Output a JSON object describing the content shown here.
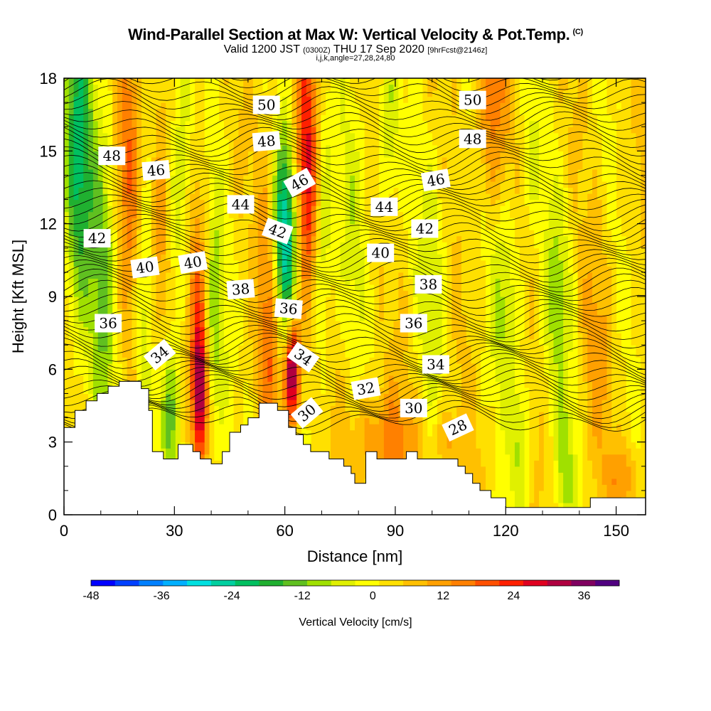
{
  "title": {
    "main": "Wind-Parallel Section at Max W: Vertical Velocity & Pot.Temp.",
    "copyright": "(C)",
    "valid_pre": "Valid 1200 JST",
    "valid_utc": "(0300Z)",
    "valid_date": "THU 17 Sep 2020",
    "forecast": "[9hrFcst@2146z]",
    "indices": "i,j,k,angle=27,28,24,80"
  },
  "chart_data": {
    "type": "heatmap",
    "xlabel": "Distance [nm]",
    "ylabel": "Height [Kft MSL]",
    "xlim": [
      0,
      158
    ],
    "ylim": [
      0,
      18
    ],
    "x_ticks": [
      0,
      30,
      60,
      90,
      120,
      150
    ],
    "y_ticks": [
      0,
      3,
      6,
      9,
      12,
      15,
      18
    ],
    "colorbar": {
      "label": "Vertical Velocity [cm/s]",
      "range": [
        -48,
        42
      ],
      "step": 4,
      "tick_values": [
        -48,
        -36,
        -24,
        -12,
        0,
        12,
        24,
        36
      ],
      "colors": [
        "#0000ff",
        "#0040ff",
        "#0080ff",
        "#00b0ff",
        "#00e0e0",
        "#00d0a0",
        "#00c060",
        "#20b030",
        "#60c020",
        "#a0e000",
        "#e0f000",
        "#ffff00",
        "#ffe000",
        "#ffc000",
        "#ffa000",
        "#ff8000",
        "#ff5000",
        "#ff2000",
        "#e00020",
        "#b00040",
        "#800060",
        "#500080"
      ]
    },
    "terrain_profile": [
      [
        0,
        3.6
      ],
      [
        3,
        3.6
      ],
      [
        3,
        4.3
      ],
      [
        6,
        4.3
      ],
      [
        6,
        4.7
      ],
      [
        9,
        4.7
      ],
      [
        9,
        5.0
      ],
      [
        12,
        5.0
      ],
      [
        12,
        5.3
      ],
      [
        15,
        5.3
      ],
      [
        15,
        5.5
      ],
      [
        21,
        5.5
      ],
      [
        21,
        5.2
      ],
      [
        23,
        5.2
      ],
      [
        23,
        4.3
      ],
      [
        24,
        4.3
      ],
      [
        24,
        2.6
      ],
      [
        27,
        2.6
      ],
      [
        27,
        2.3
      ],
      [
        31,
        2.3
      ],
      [
        31,
        2.9
      ],
      [
        35,
        2.9
      ],
      [
        35,
        2.6
      ],
      [
        37,
        2.6
      ],
      [
        37,
        2.3
      ],
      [
        40,
        2.3
      ],
      [
        40,
        2.1
      ],
      [
        43,
        2.1
      ],
      [
        43,
        2.6
      ],
      [
        45,
        2.6
      ],
      [
        45,
        3.4
      ],
      [
        48,
        3.4
      ],
      [
        48,
        3.7
      ],
      [
        50,
        3.7
      ],
      [
        50,
        4.0
      ],
      [
        53,
        4.0
      ],
      [
        53,
        4.6
      ],
      [
        58,
        4.6
      ],
      [
        58,
        4.3
      ],
      [
        61,
        4.3
      ],
      [
        61,
        3.6
      ],
      [
        63,
        3.6
      ],
      [
        63,
        3.3
      ],
      [
        65,
        3.3
      ],
      [
        65,
        2.9
      ],
      [
        67,
        2.9
      ],
      [
        67,
        2.6
      ],
      [
        72,
        2.6
      ],
      [
        72,
        2.3
      ],
      [
        76,
        2.3
      ],
      [
        76,
        2.0
      ],
      [
        78,
        2.0
      ],
      [
        78,
        1.7
      ],
      [
        79,
        1.7
      ],
      [
        79,
        1.3
      ],
      [
        82,
        1.3
      ],
      [
        82,
        2.6
      ],
      [
        85,
        2.6
      ],
      [
        85,
        2.3
      ],
      [
        93,
        2.3
      ],
      [
        93,
        2.6
      ],
      [
        96,
        2.6
      ],
      [
        96,
        2.3
      ],
      [
        107,
        2.3
      ],
      [
        107,
        2.0
      ],
      [
        109,
        2.0
      ],
      [
        109,
        1.7
      ],
      [
        111,
        1.7
      ],
      [
        111,
        1.3
      ],
      [
        113,
        1.3
      ],
      [
        113,
        1.0
      ],
      [
        116,
        1.0
      ],
      [
        116,
        0.7
      ],
      [
        120,
        0.7
      ],
      [
        120,
        0.3
      ],
      [
        143,
        0.3
      ],
      [
        143,
        0.7
      ],
      [
        158,
        0.7
      ]
    ],
    "theta_contours": {
      "label_values": [
        28,
        30,
        32,
        34,
        36,
        38,
        40,
        42,
        44,
        46,
        48,
        50
      ],
      "labels": [
        {
          "v": "48",
          "x": 13,
          "y": 14.8,
          "r": 0
        },
        {
          "v": "46",
          "x": 25,
          "y": 14.2,
          "r": -5
        },
        {
          "v": "44",
          "x": 48,
          "y": 12.8,
          "r": 0
        },
        {
          "v": "42",
          "x": 9,
          "y": 11.4,
          "r": 0
        },
        {
          "v": "40",
          "x": 22,
          "y": 10.2,
          "r": -8
        },
        {
          "v": "40",
          "x": 35,
          "y": 10.4,
          "r": -10
        },
        {
          "v": "38",
          "x": 48,
          "y": 9.3,
          "r": -5
        },
        {
          "v": "36",
          "x": 12,
          "y": 7.9,
          "r": 0
        },
        {
          "v": "34",
          "x": 26,
          "y": 6.6,
          "r": -40
        },
        {
          "v": "50",
          "x": 55,
          "y": 16.9,
          "r": 0
        },
        {
          "v": "48",
          "x": 55,
          "y": 15.4,
          "r": -5
        },
        {
          "v": "46",
          "x": 64,
          "y": 13.7,
          "r": -30
        },
        {
          "v": "42",
          "x": 58,
          "y": 11.7,
          "r": 20
        },
        {
          "v": "36",
          "x": 61,
          "y": 8.5,
          "r": 5
        },
        {
          "v": "34",
          "x": 65,
          "y": 6.5,
          "r": 35
        },
        {
          "v": "30",
          "x": 66,
          "y": 4.2,
          "r": -40
        },
        {
          "v": "50",
          "x": 111,
          "y": 17.1,
          "r": 0
        },
        {
          "v": "48",
          "x": 111,
          "y": 15.5,
          "r": 0
        },
        {
          "v": "46",
          "x": 101,
          "y": 13.8,
          "r": -10
        },
        {
          "v": "44",
          "x": 87,
          "y": 12.7,
          "r": 0
        },
        {
          "v": "42",
          "x": 98,
          "y": 11.8,
          "r": 0
        },
        {
          "v": "40",
          "x": 86,
          "y": 10.8,
          "r": 0
        },
        {
          "v": "38",
          "x": 99,
          "y": 9.5,
          "r": 0
        },
        {
          "v": "36",
          "x": 95,
          "y": 7.9,
          "r": 0
        },
        {
          "v": "34",
          "x": 101,
          "y": 6.2,
          "r": 0
        },
        {
          "v": "32",
          "x": 82,
          "y": 5.2,
          "r": -10
        },
        {
          "v": "30",
          "x": 95,
          "y": 4.4,
          "r": 0
        },
        {
          "v": "28",
          "x": 107,
          "y": 3.6,
          "r": -25
        }
      ]
    },
    "w_features": [
      {
        "x": 4,
        "y": 15,
        "sx": 3,
        "sy": 5,
        "v": -22
      },
      {
        "x": 11,
        "y": 10,
        "sx": 2.5,
        "sy": 5,
        "v": -14
      },
      {
        "x": 18,
        "y": 15,
        "sx": 2.5,
        "sy": 4,
        "v": 14
      },
      {
        "x": 22,
        "y": 8,
        "sx": 2,
        "sy": 4,
        "v": -10
      },
      {
        "x": 26,
        "y": 11,
        "sx": 2,
        "sy": 4,
        "v": 12
      },
      {
        "x": 28,
        "y": 4,
        "sx": 2,
        "sy": 2,
        "v": -14
      },
      {
        "x": 32,
        "y": 14,
        "sx": 2.5,
        "sy": 4,
        "v": -12
      },
      {
        "x": 36,
        "y": 9,
        "sx": 2,
        "sy": 4,
        "v": 12
      },
      {
        "x": 37,
        "y": 5,
        "sx": 1.3,
        "sy": 2,
        "v": 26
      },
      {
        "x": 41,
        "y": 8,
        "sx": 2,
        "sy": 4,
        "v": -12
      },
      {
        "x": 56,
        "y": 8,
        "sx": 2,
        "sy": 5,
        "v": 14
      },
      {
        "x": 60,
        "y": 11.5,
        "sx": 2.5,
        "sy": 3,
        "v": -30
      },
      {
        "x": 62,
        "y": 6,
        "sx": 1.5,
        "sy": 1.5,
        "v": 36
      },
      {
        "x": 66,
        "y": 14,
        "sx": 2.5,
        "sy": 4,
        "v": 24
      },
      {
        "x": 70,
        "y": 12,
        "sx": 2,
        "sy": 4,
        "v": -14
      },
      {
        "x": 78,
        "y": 12,
        "sx": 3,
        "sy": 4,
        "v": -6
      },
      {
        "x": 87,
        "y": 3,
        "sx": 6,
        "sy": 1.5,
        "v": 12
      },
      {
        "x": 88,
        "y": 16,
        "sx": 2,
        "sy": 3,
        "v": -10
      },
      {
        "x": 100,
        "y": 10,
        "sx": 3,
        "sy": 4,
        "v": -8
      },
      {
        "x": 104,
        "y": 3,
        "sx": 3,
        "sy": 1,
        "v": 8
      },
      {
        "x": 116,
        "y": 17,
        "sx": 3,
        "sy": 3,
        "v": 12
      },
      {
        "x": 120,
        "y": 9,
        "sx": 3,
        "sy": 3,
        "v": -10
      },
      {
        "x": 124,
        "y": 3,
        "sx": 2,
        "sy": 2,
        "v": -10
      },
      {
        "x": 127,
        "y": 15,
        "sx": 2,
        "sy": 2,
        "v": -6
      },
      {
        "x": 134,
        "y": 9,
        "sx": 3,
        "sy": 3,
        "v": -10
      },
      {
        "x": 136,
        "y": 2,
        "sx": 2,
        "sy": 2,
        "v": -10
      },
      {
        "x": 145,
        "y": 7,
        "sx": 3,
        "sy": 3,
        "v": 6
      },
      {
        "x": 152,
        "y": 1.5,
        "sx": 3,
        "sy": 1,
        "v": 10
      }
    ]
  }
}
